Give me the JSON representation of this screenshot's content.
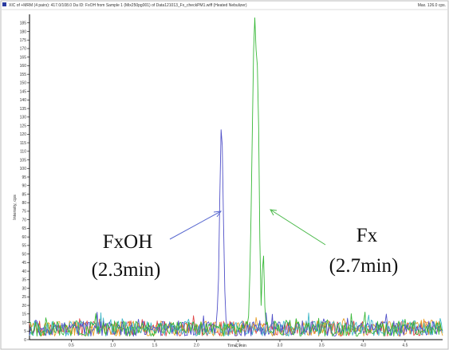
{
  "header": {
    "title": "XIC of +MRM (4 pairs): 417.0/108.0 Da ID: FxOH from Sample 1 (Mix250pg001) of Data121013_Fx_checkPM1.wiff (Heated Nebulizer)",
    "max_label": "Max. 126.0 cps."
  },
  "chart_data": {
    "type": "line",
    "xlabel": "Time, min",
    "ylabel": "Intensity, cps",
    "xlim": [
      0.0,
      4.95
    ],
    "ylim": [
      0,
      190
    ],
    "x_ticks": [
      0.5,
      1.0,
      1.5,
      2.0,
      2.5,
      3.0,
      3.5,
      4.0,
      4.5
    ],
    "x_tick_labels": [
      "0.5",
      "1.0",
      "1.5",
      "2.0",
      "2.5",
      "3.0",
      "3.5",
      "4.0",
      "4.5"
    ],
    "y_ticks": [
      0,
      5,
      10,
      15,
      20,
      25,
      30,
      35,
      40,
      45,
      50,
      55,
      60,
      65,
      70,
      75,
      80,
      85,
      90,
      95,
      100,
      105,
      110,
      115,
      120,
      125,
      130,
      135,
      140,
      145,
      150,
      155,
      160,
      165,
      170,
      175,
      180,
      185
    ],
    "y_tick_labels": [
      "0",
      "5",
      "10",
      "15",
      "20",
      "25",
      "30",
      "35",
      "40",
      "45",
      "50",
      "55",
      "60",
      "65",
      "70",
      "75",
      "80",
      "85",
      "90",
      "95",
      "100",
      "105",
      "110",
      "115",
      "120",
      "125",
      "130",
      "135",
      "140",
      "145",
      "150",
      "155",
      "160",
      "165",
      "170",
      "175",
      "180",
      "185"
    ],
    "grid": false,
    "series": [
      {
        "color": "#5050c8",
        "peak": {
          "x": 2.3,
          "y": 126
        }
      },
      {
        "color": "#38b838",
        "peak": {
          "x": 2.7,
          "y": 188
        }
      },
      {
        "color": "#e04848"
      },
      {
        "color": "#e6a028"
      },
      {
        "color": "#40b8c8"
      }
    ],
    "annotations": [
      {
        "name": "fxoh",
        "line1": "FxOH",
        "line2": "(2.3min)",
        "color": "#5a6ad0"
      },
      {
        "name": "fx",
        "line1": "Fx",
        "line2": "(2.7min)",
        "color": "#48b848"
      }
    ]
  }
}
